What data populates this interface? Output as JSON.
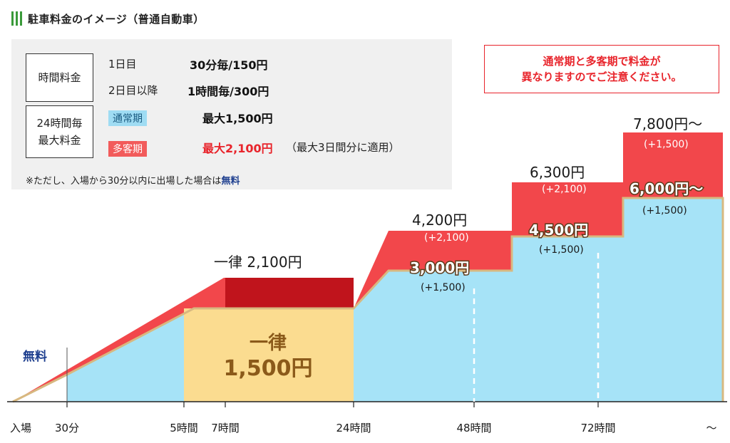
{
  "title": "駐車料金のイメージ（普通自動車）",
  "fee_table": {
    "hourly_label": "時間料金",
    "day1_label": "1日目",
    "day1_rate": "30分毎/150円",
    "day2_label": "2日目以降",
    "day2_rate": "1時間毎/300円",
    "max_label_line1": "24時間毎",
    "max_label_line2": "最大料金",
    "normal_tag": "通常期",
    "normal_max": "最大1,500円",
    "peak_tag": "多客期",
    "peak_max": "最大2,100円",
    "peak_note": "（最大3日間分に適用）"
  },
  "note": {
    "text": "※ただし、入場から30分以内に出場した場合は",
    "free": "無料"
  },
  "warning": {
    "line1": "通常期と多客期で料金が",
    "line2": "異なりますのでご注意ください。"
  },
  "colors": {
    "normal_fill": "#a6e3f7",
    "peak_fill": "#f2474b",
    "flat_peak_fill": "#c0141c",
    "flat_normal_fill": "#fbdc90",
    "free_text": "#1e3f8f",
    "title_bars": "#3a9a3a"
  },
  "chart_data": {
    "type": "area",
    "x_axis_labels": [
      "入場",
      "30分",
      "5時間",
      "7時間",
      "24時間",
      "48時間",
      "72時間",
      "〜"
    ],
    "free_label": "無料",
    "flat_rate": {
      "peak_label": "一律 2,100円",
      "normal_label_line1": "一律",
      "normal_label_line2": "1,500円"
    },
    "series": [
      {
        "name": "通常期",
        "points": [
          {
            "x": "48時間",
            "label": "3,000円",
            "increment": "(+1,500)"
          },
          {
            "x": "72時間",
            "label": "4,500円",
            "increment": "(+1,500)"
          },
          {
            "x": "〜",
            "label": "6,000円〜",
            "increment": "(+1,500)"
          }
        ]
      },
      {
        "name": "多客期",
        "points": [
          {
            "x": "48時間",
            "label": "4,200円",
            "increment": "(+2,100)"
          },
          {
            "x": "72時間",
            "label": "6,300円",
            "increment": "(+2,100)"
          },
          {
            "x": "〜",
            "label": "7,800円〜",
            "increment": "(+1,500)"
          }
        ]
      }
    ]
  }
}
